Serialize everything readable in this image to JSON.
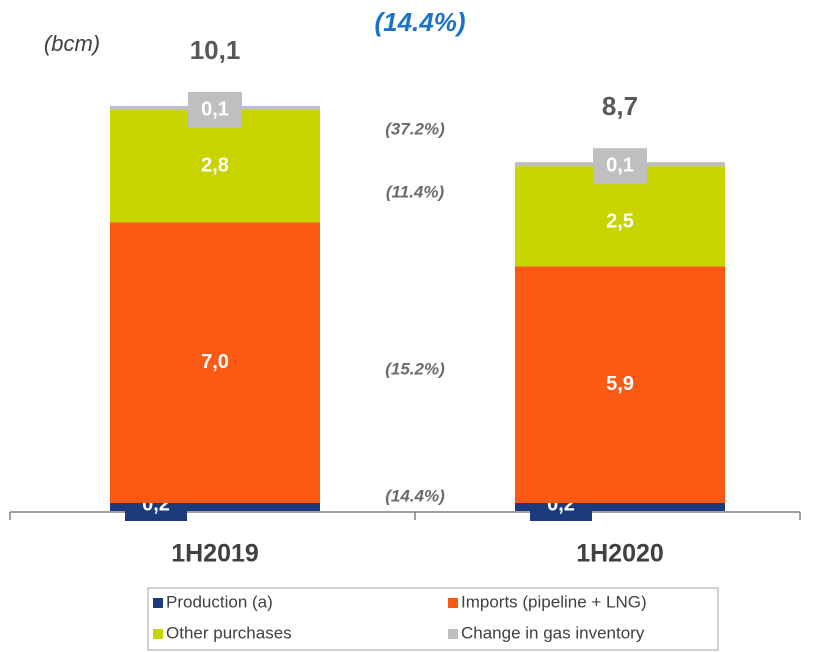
{
  "chart_data": {
    "type": "stacked_bar",
    "unit_label": "(bcm)",
    "annotation": "(14.4%)",
    "categories": [
      "1H2019",
      "1H2020"
    ],
    "series": [
      {
        "name": "Production (a)",
        "color": "#1b3b7d",
        "values": [
          0.2,
          0.2
        ],
        "value_labels": [
          "0,2",
          "0,2"
        ],
        "change_label": "(14.4%)"
      },
      {
        "name": "Imports (pipeline + LNG)",
        "color": "#fa5a14",
        "values": [
          7.0,
          5.9
        ],
        "value_labels": [
          "7,0",
          "5,9"
        ],
        "change_label": "(15.2%)"
      },
      {
        "name": "Other purchases",
        "color": "#c8d400",
        "values": [
          2.8,
          2.5
        ],
        "value_labels": [
          "2,8",
          "2,5"
        ],
        "change_label": "(11.4%)"
      },
      {
        "name": "Change in gas inventory",
        "color": "#bfbfbf",
        "values": [
          0.1,
          0.1
        ],
        "value_labels": [
          "0,1",
          "0,1"
        ],
        "change_label": "(37.2%)"
      }
    ],
    "totals": [
      10.1,
      8.7
    ],
    "total_labels": [
      "10,1",
      "8,7"
    ]
  }
}
